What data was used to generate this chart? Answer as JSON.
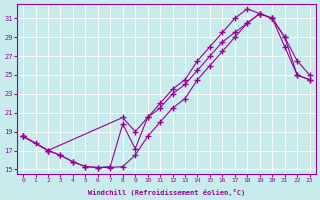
{
  "xlabel": "Windchill (Refroidissement éolien,°C)",
  "ylabel": "",
  "bg_color": "#c8ecec",
  "line_color": "#990099",
  "xlim": [
    -0.5,
    23.5
  ],
  "ylim": [
    14.5,
    32.5
  ],
  "xticks": [
    0,
    1,
    2,
    3,
    4,
    5,
    6,
    7,
    8,
    9,
    10,
    11,
    12,
    13,
    14,
    15,
    16,
    17,
    18,
    19,
    20,
    21,
    22,
    23
  ],
  "yticks": [
    15,
    17,
    19,
    21,
    23,
    25,
    27,
    29,
    31
  ],
  "line1_x": [
    0,
    1,
    2,
    3,
    4,
    5,
    6,
    7,
    8,
    9,
    10,
    11,
    12,
    13,
    14,
    15,
    16,
    17,
    18,
    19,
    20,
    21,
    22,
    23
  ],
  "line1_y": [
    18.5,
    17.8,
    17.0,
    16.5,
    15.8,
    15.3,
    15.2,
    15.2,
    15.3,
    16.5,
    18.5,
    20.0,
    21.5,
    22.5,
    24.5,
    26.0,
    27.5,
    29.0,
    30.5,
    31.5,
    31.0,
    28.0,
    25.0,
    24.5
  ],
  "line2_x": [
    0,
    2,
    3,
    4,
    5,
    6,
    7,
    8,
    9,
    10,
    11,
    12,
    13,
    14,
    15,
    16,
    17,
    18,
    19,
    20,
    21,
    22,
    23
  ],
  "line2_y": [
    18.5,
    17.0,
    16.5,
    15.8,
    15.3,
    15.2,
    15.3,
    19.8,
    17.2,
    20.5,
    22.0,
    23.5,
    24.5,
    26.5,
    28.0,
    29.5,
    31.0,
    32.0,
    31.5,
    31.0,
    29.0,
    26.5,
    25.0
  ],
  "line3_x": [
    0,
    2,
    8,
    9,
    10,
    11,
    12,
    13,
    14,
    15,
    16,
    17,
    18,
    19,
    20,
    21,
    22,
    23
  ],
  "line3_y": [
    18.5,
    17.0,
    20.5,
    19.0,
    20.5,
    21.5,
    23.0,
    24.0,
    25.5,
    27.0,
    28.5,
    29.5,
    30.5,
    31.5,
    31.0,
    29.0,
    25.0,
    24.5
  ]
}
